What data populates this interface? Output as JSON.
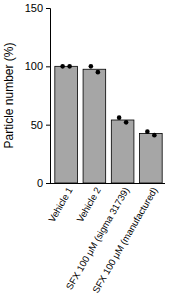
{
  "chart_data": {
    "type": "bar",
    "y_label": "Particle number (%)",
    "categories": [
      "Vehicle 1",
      "Vehicle 2",
      "SFX 100 μM (sigma 31739)",
      "SFX 100 μM (manufactured)"
    ],
    "values": [
      100,
      97.5,
      54,
      42.5
    ],
    "replicates": [
      [
        100,
        100
      ],
      [
        100,
        95
      ],
      [
        56,
        52
      ],
      [
        44,
        41
      ]
    ],
    "color": "#a6a6a6",
    "ylim": [
      0,
      150
    ],
    "yticks": [
      0,
      50,
      100,
      150
    ],
    "grid": false
  }
}
